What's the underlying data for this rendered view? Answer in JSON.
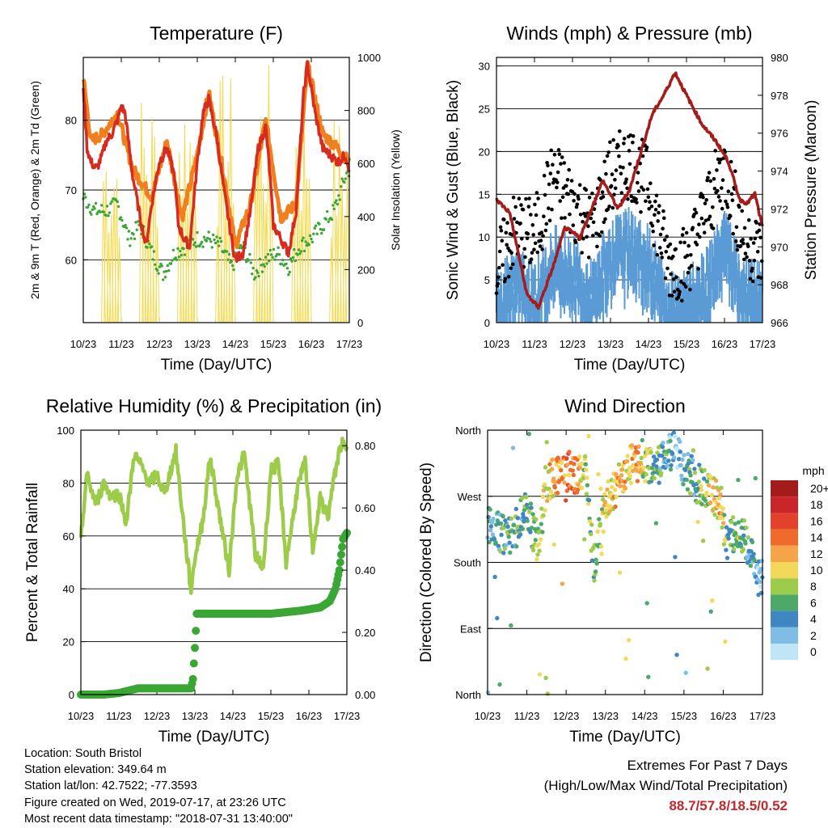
{
  "info": {
    "location": "Location: South Bristol",
    "elevation": "Station elevation: 349.64 m",
    "latlon": "Station lat/lon: 42.7522; -77.3593",
    "created": "Figure created on Wed, 2019-07-17, at 23:26 UTC",
    "recent": "Most recent data timestamp: \"2018-07-31 13:40:00\""
  },
  "extremes": {
    "title": "Extremes For Past 7 Days",
    "subtitle": "(High/Low/Max Wind/Total Precipitation)",
    "values": "88.7/57.8/18.5/0.52"
  },
  "colors": {
    "temp2m": "#d62b1f",
    "temp9m": "#f07f1e",
    "dewpoint": "#3aa635",
    "solar": "#f5d94a",
    "wind": "#5a9bd5",
    "gust": "#000000",
    "pressure": "#a41c1c",
    "rh": "#9ccc4a",
    "rain": "#3aa635"
  },
  "chart_data": [
    {
      "type": "line",
      "title": "Temperature (F)",
      "xlabel": "Time (Day/UTC)",
      "ylabel": "2m & 9m T (Red, Orange) & 2m Td (Green)",
      "y2label": "Solar Insolation (Yellow)",
      "x_ticks": [
        "10/23",
        "11/23",
        "12/23",
        "13/23",
        "14/23",
        "15/23",
        "16/23",
        "17/23"
      ],
      "ylim": [
        51,
        89
      ],
      "y_ticks": [
        60,
        70,
        80
      ],
      "y2lim": [
        0,
        1000
      ],
      "y2_ticks": [
        0,
        200,
        400,
        600,
        800,
        1000
      ],
      "grid": "horizontal",
      "series": [
        {
          "name": "2m T",
          "axis": "left",
          "x": [
            0,
            0.1,
            0.2,
            0.35,
            0.5,
            0.6,
            0.75,
            0.9,
            1.0,
            1.1,
            1.3,
            1.5,
            1.65,
            1.8,
            2.0,
            2.2,
            2.4,
            2.5,
            2.65,
            2.8,
            2.9,
            3.0,
            3.15,
            3.3,
            3.5,
            3.7,
            3.9,
            4.0,
            4.2,
            4.4,
            4.6,
            4.8,
            4.9,
            5.0,
            5.2,
            5.4,
            5.6,
            5.8,
            5.9,
            6.1,
            6.3,
            6.5,
            6.7,
            6.9,
            7.0
          ],
          "values": [
            85,
            76,
            74,
            73,
            75,
            77,
            78,
            80,
            82,
            81,
            72,
            66,
            62,
            68,
            74,
            76,
            72,
            65,
            63,
            62,
            68,
            74,
            81,
            83,
            78,
            70,
            63,
            60,
            61,
            67,
            76,
            79,
            73,
            65,
            63,
            61,
            67,
            84,
            88,
            81,
            76,
            75,
            74,
            75,
            73
          ]
        },
        {
          "name": "9m T",
          "axis": "left",
          "x": [
            0,
            0.2,
            0.5,
            0.9,
            1.3,
            1.8,
            2.2,
            2.6,
            3.0,
            3.3,
            3.7,
            4.0,
            4.4,
            4.8,
            5.2,
            5.6,
            5.9,
            6.3,
            6.7,
            7.0
          ],
          "values": [
            86,
            77,
            78,
            81,
            73,
            69,
            77,
            66,
            75,
            84,
            72,
            62,
            68,
            80,
            66,
            68,
            88,
            78,
            76,
            74
          ]
        },
        {
          "name": "2m Td",
          "axis": "left",
          "x": [
            0,
            0.3,
            0.6,
            0.9,
            1.2,
            1.5,
            1.8,
            2.1,
            2.4,
            2.7,
            3.0,
            3.3,
            3.6,
            3.9,
            4.2,
            4.5,
            4.8,
            5.1,
            5.4,
            5.7,
            6.0,
            6.3,
            6.6,
            6.9,
            7.0
          ],
          "values": [
            69,
            67,
            67,
            68,
            63,
            65,
            61,
            58,
            61,
            62,
            63,
            63,
            62,
            59,
            62,
            58,
            60,
            61,
            59,
            62,
            63,
            65,
            67,
            72,
            73
          ]
        },
        {
          "name": "Solar",
          "axis": "right",
          "peaks": [
            0.75,
            1.75,
            2.75,
            3.75,
            4.75,
            5.75,
            6.75
          ],
          "peak_values": [
            800,
            900,
            950,
            950,
            980,
            940,
            800
          ]
        }
      ]
    },
    {
      "type": "scatter",
      "title": "Winds (mph) & Pressure (mb)",
      "xlabel": "Time (Day/UTC)",
      "ylabel": "Sonic Wind & Gust (Blue, Black)",
      "y2label": "Station Pressure (Maroon)",
      "x_ticks": [
        "10/23",
        "11/23",
        "12/23",
        "13/23",
        "14/23",
        "15/23",
        "16/23",
        "17/23"
      ],
      "ylim": [
        0,
        31
      ],
      "y_ticks": [
        0,
        5,
        10,
        15,
        20,
        25,
        30
      ],
      "y2lim": [
        966,
        980
      ],
      "y2_ticks": [
        966,
        968,
        970,
        972,
        974,
        976,
        978,
        980
      ],
      "grid": "horizontal",
      "series": [
        {
          "name": "Sonic Wind",
          "axis": "left",
          "x": [
            0,
            0.5,
            1.0,
            1.5,
            2.0,
            2.5,
            3.0,
            3.5,
            4.0,
            4.5,
            5.0,
            5.5,
            6.0,
            6.5,
            7.0
          ],
          "values": [
            3,
            6,
            4,
            8,
            7,
            4,
            9,
            10,
            8,
            3,
            3,
            5,
            10,
            4,
            4
          ]
        },
        {
          "name": "Gust",
          "axis": "left",
          "x": [
            0,
            0.5,
            1.0,
            1.5,
            2.0,
            2.5,
            3.0,
            3.5,
            4.0,
            4.5,
            5.0,
            5.5,
            6.0,
            6.5,
            7.0
          ],
          "values": [
            6,
            11,
            10,
            17,
            14,
            11,
            17,
            19,
            16,
            7,
            7,
            13,
            18,
            10,
            8
          ]
        },
        {
          "name": "Pressure",
          "axis": "right",
          "x": [
            0,
            0.35,
            0.8,
            1.1,
            1.5,
            1.8,
            2.2,
            2.5,
            2.8,
            3.2,
            3.5,
            3.8,
            4.1,
            4.4,
            4.7,
            5.0,
            5.4,
            5.8,
            6.1,
            6.4,
            6.6,
            6.8,
            7.0
          ],
          "values": [
            972.5,
            971.8,
            967.5,
            966.8,
            969,
            971,
            970.5,
            972,
            973.5,
            972,
            973,
            975,
            977,
            978,
            979.2,
            978,
            976.5,
            975.5,
            974.5,
            972.5,
            972.3,
            972.8,
            971
          ]
        }
      ]
    },
    {
      "type": "line",
      "title": "Relative Humidity (%) & Precipitation (in)",
      "xlabel": "Time (Day/UTC)",
      "ylabel": "Percent & Total Rainfall",
      "x_ticks": [
        "10/23",
        "11/23",
        "12/23",
        "13/23",
        "14/23",
        "15/23",
        "16/23",
        "17/23"
      ],
      "ylim": [
        0,
        100
      ],
      "y_ticks": [
        0,
        20,
        40,
        60,
        80,
        100
      ],
      "y2lim": [
        0,
        0.85
      ],
      "y2_ticks": [
        "0.00",
        "0.20",
        "0.40",
        "0.60",
        "0.80"
      ],
      "grid": "horizontal",
      "series": [
        {
          "name": "RH",
          "axis": "left",
          "x": [
            0,
            0.15,
            0.4,
            0.6,
            0.8,
            1.0,
            1.2,
            1.4,
            1.6,
            1.8,
            2.0,
            2.2,
            2.5,
            2.75,
            2.9,
            3.0,
            3.2,
            3.4,
            3.6,
            3.9,
            4.1,
            4.3,
            4.6,
            4.8,
            5.0,
            5.2,
            5.4,
            5.7,
            5.9,
            6.1,
            6.3,
            6.5,
            6.7,
            6.85,
            7.0
          ],
          "values": [
            58,
            83,
            72,
            80,
            75,
            76,
            65,
            91,
            86,
            80,
            83,
            76,
            92,
            58,
            39,
            52,
            65,
            90,
            72,
            47,
            82,
            91,
            52,
            48,
            85,
            87,
            50,
            78,
            88,
            55,
            74,
            67,
            85,
            95,
            92
          ]
        },
        {
          "name": "Total Rainfall",
          "axis": "right",
          "x": [
            0,
            0.6,
            1.0,
            1.5,
            2.0,
            2.9,
            2.95,
            3.0,
            3.05,
            3.5,
            4.0,
            5.0,
            5.8,
            6.3,
            6.55,
            6.7,
            6.8,
            6.85,
            6.9,
            6.95,
            7.0
          ],
          "values": [
            0,
            0,
            0.005,
            0.02,
            0.02,
            0.02,
            0.05,
            0.15,
            0.26,
            0.26,
            0.26,
            0.26,
            0.27,
            0.28,
            0.3,
            0.34,
            0.4,
            0.45,
            0.5,
            0.51,
            0.52
          ]
        }
      ]
    },
    {
      "type": "scatter",
      "title": "Wind Direction",
      "xlabel": "Time (Day/UTC)",
      "ylabel": "Direction (Colored By Speed)",
      "x_ticks": [
        "10/23",
        "11/23",
        "12/23",
        "13/23",
        "14/23",
        "15/23",
        "16/23",
        "17/23"
      ],
      "y_ticks": [
        "North",
        "East",
        "South",
        "West",
        "North"
      ],
      "ylim": [
        0,
        360
      ],
      "grid": "horizontal",
      "legend": "right",
      "legend_title": "mph",
      "legend_labels": [
        "20+",
        "18",
        "16",
        "14",
        "12",
        "10",
        "8",
        "6",
        "4",
        "2",
        "0"
      ],
      "legend_colors": [
        "#a31b1b",
        "#c9252a",
        "#e4412d",
        "#f06a2b",
        "#f6a44a",
        "#f2d95a",
        "#9ccc4a",
        "#4ca96a",
        "#3f86c2",
        "#80bde6",
        "#bfe6f7"
      ],
      "series": [
        {
          "name": "Direction",
          "x": [
            0.2,
            0.5,
            1.0,
            1.3,
            1.5,
            1.8,
            2.0,
            2.3,
            2.5,
            2.7,
            3.0,
            3.3,
            3.6,
            3.8,
            4.0,
            4.3,
            4.6,
            4.8,
            5.0,
            5.3,
            5.6,
            5.9,
            6.1,
            6.4,
            6.7,
            6.9
          ],
          "values": [
            230,
            210,
            250,
            200,
            290,
            300,
            305,
            300,
            310,
            170,
            260,
            285,
            310,
            330,
            315,
            305,
            330,
            335,
            310,
            290,
            280,
            260,
            200,
            230,
            190,
            160
          ],
          "speeds": [
            4,
            6,
            5,
            8,
            10,
            12,
            14,
            12,
            8,
            6,
            10,
            12,
            10,
            12,
            8,
            6,
            4,
            2,
            4,
            6,
            8,
            12,
            6,
            8,
            4,
            2
          ]
        }
      ]
    }
  ]
}
